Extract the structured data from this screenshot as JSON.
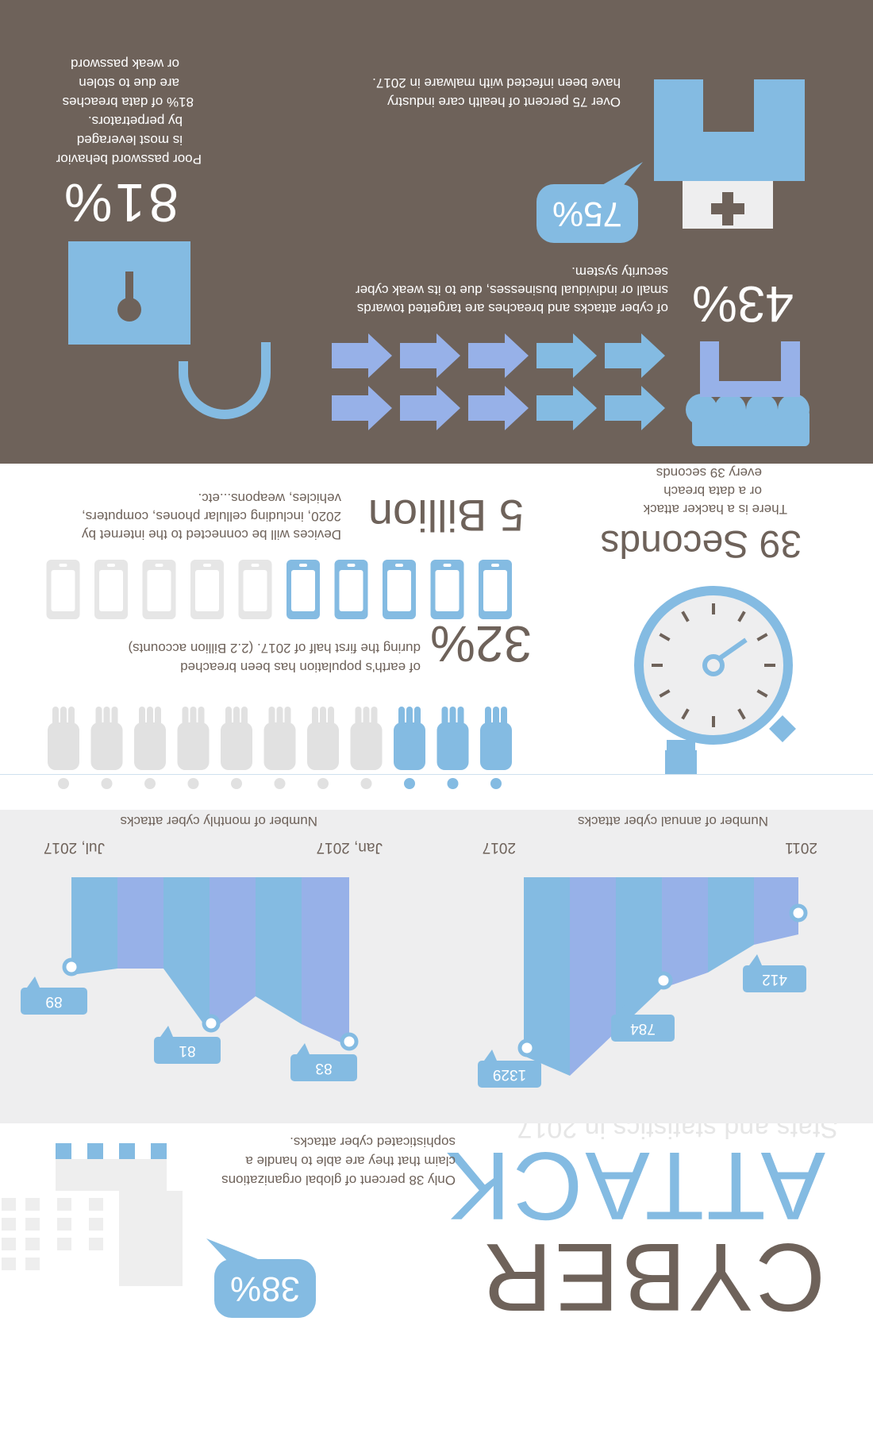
{
  "header": {
    "title_line1": "CYBER",
    "title_line2": "ATTACK",
    "subtitle": "Stats and statistics in 2017"
  },
  "orgs": {
    "percent": "38%",
    "text": [
      "Only 38 percent of global organizations",
      "claim that they are  able to handle a",
      "sophisticated cyber attacks."
    ],
    "icon": "building-icon"
  },
  "annual_chart": {
    "title": "Number of annual cyber attacks",
    "start_label": "2011",
    "end_label": "2017"
  },
  "monthly_chart": {
    "title": "Number of monthly cyber attacks",
    "start_label": "Jan, 2017",
    "end_label": "Jul, 2017"
  },
  "chart_data": [
    {
      "type": "area",
      "xlabel": "Number of annual cyber attacks",
      "x": [
        "2011",
        "",
        "",
        "",
        "",
        "2017"
      ],
      "labeled_points": [
        {
          "x": "2011",
          "y": 412
        },
        {
          "x": "",
          "y": 784
        },
        {
          "x": "2017",
          "y": 1329
        }
      ]
    },
    {
      "type": "area",
      "xlabel": "Number of monthly cyber attacks",
      "x": [
        "Jan, 2017",
        "",
        "",
        "",
        "",
        "",
        "Jul, 2017"
      ],
      "labeled_points": [
        {
          "x": "Jan, 2017",
          "y": 83
        },
        {
          "x": "",
          "y": 81
        },
        {
          "x": "Jul, 2017",
          "y": 89
        }
      ]
    }
  ],
  "seconds": {
    "headline": "39 Seconds",
    "text": [
      "There is a hacker attack",
      "or a data breach",
      "every 39 seconds"
    ],
    "icon": "stopwatch-icon"
  },
  "population": {
    "percent": "32%",
    "text": [
      "of earth's population has been breached",
      "during the first half of 2017. (2.2 Billion accounts)"
    ],
    "highlighted": 3,
    "total": 11,
    "icon": "person-icon"
  },
  "devices": {
    "headline": "5 Billion",
    "text": [
      "Devices will be connected to the internet by",
      "2020, including cellular phones, computers,",
      "vehicles, weapons...etc."
    ],
    "highlighted": 5,
    "total": 10,
    "icon": "phone-icon"
  },
  "small_business": {
    "percent": "43%",
    "text": [
      "of cyber attacks and breaches are targetted towards",
      "small or individual businesses, due to its weak cyber",
      "security system."
    ],
    "icons": [
      "shop-icon",
      "arrow-icon"
    ]
  },
  "health": {
    "percent": "75%",
    "text": [
      "Over 75 percent of health care industry",
      "have been infected with malware in 2017."
    ],
    "icon": "hospital-icon"
  },
  "password": {
    "percent": "81%",
    "text": [
      "Poor password behavior",
      "is most leveraged",
      "by perpetrators.",
      "81% of data breaches",
      "are due to stolen",
      "or weak password"
    ],
    "icon": "padlock-icon"
  },
  "colors": {
    "brown": "#6e625a",
    "blue": "#84bbe2",
    "periwinkle": "#97b1e8",
    "light_gray": "#eeeeef",
    "ghost": "#dcdcdc"
  }
}
